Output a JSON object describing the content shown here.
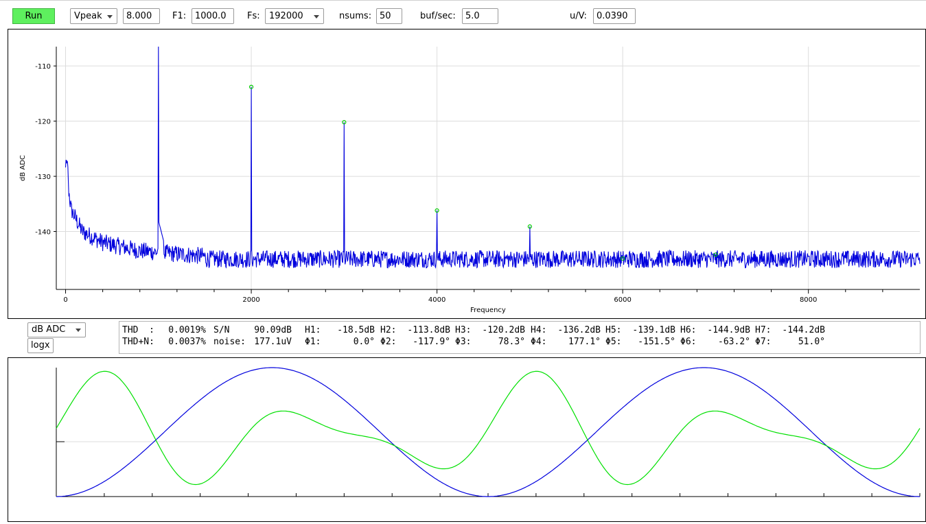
{
  "toolbar": {
    "run_label": "Run",
    "mode": "Vpeak",
    "amplitude": "8.000",
    "f1_label": "F1:",
    "f1_value": "1000.0",
    "fs_label": "Fs:",
    "fs_value": "192000",
    "nsums_label": "nsums:",
    "nsums_value": "50",
    "bufsec_label": "buf/sec:",
    "bufsec_value": "5.0",
    "uv_label": "u/V:",
    "uv_value": "0.0390"
  },
  "controls": {
    "unit_select": "dB ADC",
    "logx_label": "logx"
  },
  "stats": {
    "row1": [
      {
        "label": "THD  :",
        "value": "0.0019%"
      },
      {
        "label": "S/N",
        "value": "90.09dB"
      },
      {
        "label": "H1:",
        "value": "-18.5dB"
      },
      {
        "label": "H2:",
        "value": "-113.8dB"
      },
      {
        "label": "H3:",
        "value": "-120.2dB"
      },
      {
        "label": "H4:",
        "value": "-136.2dB"
      },
      {
        "label": "H5:",
        "value": "-139.1dB"
      },
      {
        "label": "H6:",
        "value": "-144.9dB"
      },
      {
        "label": "H7:",
        "value": "-144.2dB"
      }
    ],
    "row2": [
      {
        "label": "THD+N:",
        "value": "0.0037%"
      },
      {
        "label": "noise:",
        "value": "177.1uV"
      },
      {
        "label": "Φ1:",
        "value": "0.0°"
      },
      {
        "label": "Φ2:",
        "value": "-117.9°"
      },
      {
        "label": "Φ3:",
        "value": "78.3°"
      },
      {
        "label": "Φ4:",
        "value": "177.1°"
      },
      {
        "label": "Φ5:",
        "value": "-151.5°"
      },
      {
        "label": "Φ6:",
        "value": "-63.2°"
      },
      {
        "label": "Φ7:",
        "value": "51.0°"
      }
    ]
  },
  "chart_data": [
    {
      "type": "line",
      "xlabel": "Frequency",
      "ylabel": "dB ADC",
      "xlim": [
        -100,
        9200
      ],
      "ylim": [
        -150.5,
        -106.5
      ],
      "x_ticks": [
        0,
        2000,
        4000,
        6000,
        8000
      ],
      "y_ticks": [
        -110,
        -120,
        -130,
        -140
      ],
      "grid": true,
      "line_color": "#0000dd",
      "marker_color": "#00cc00",
      "noise_floor_db": -145,
      "fundamental": {
        "x": 1000,
        "y": -106.5
      },
      "harmonic_markers": [
        {
          "x": 2000,
          "y": -113.8
        },
        {
          "x": 3000,
          "y": -120.2
        },
        {
          "x": 4000,
          "y": -136.2
        },
        {
          "x": 5000,
          "y": -139.1
        },
        {
          "x": 6000,
          "y": -144.9
        },
        {
          "x": 7000,
          "y": -144.2
        }
      ],
      "low_freq_rise": [
        {
          "x": 0,
          "y": -128
        },
        {
          "x": 60,
          "y": -136
        },
        {
          "x": 180,
          "y": -140
        },
        {
          "x": 400,
          "y": -142
        },
        {
          "x": 800,
          "y": -143.5
        },
        {
          "x": 1500,
          "y": -144.5
        }
      ]
    },
    {
      "type": "line",
      "series": [
        {
          "color": "#0000dd",
          "shape": "fundamental",
          "cycles": 2
        },
        {
          "color": "#00e000",
          "shape": "distorted",
          "cycles": 2
        }
      ],
      "grid": true
    }
  ]
}
